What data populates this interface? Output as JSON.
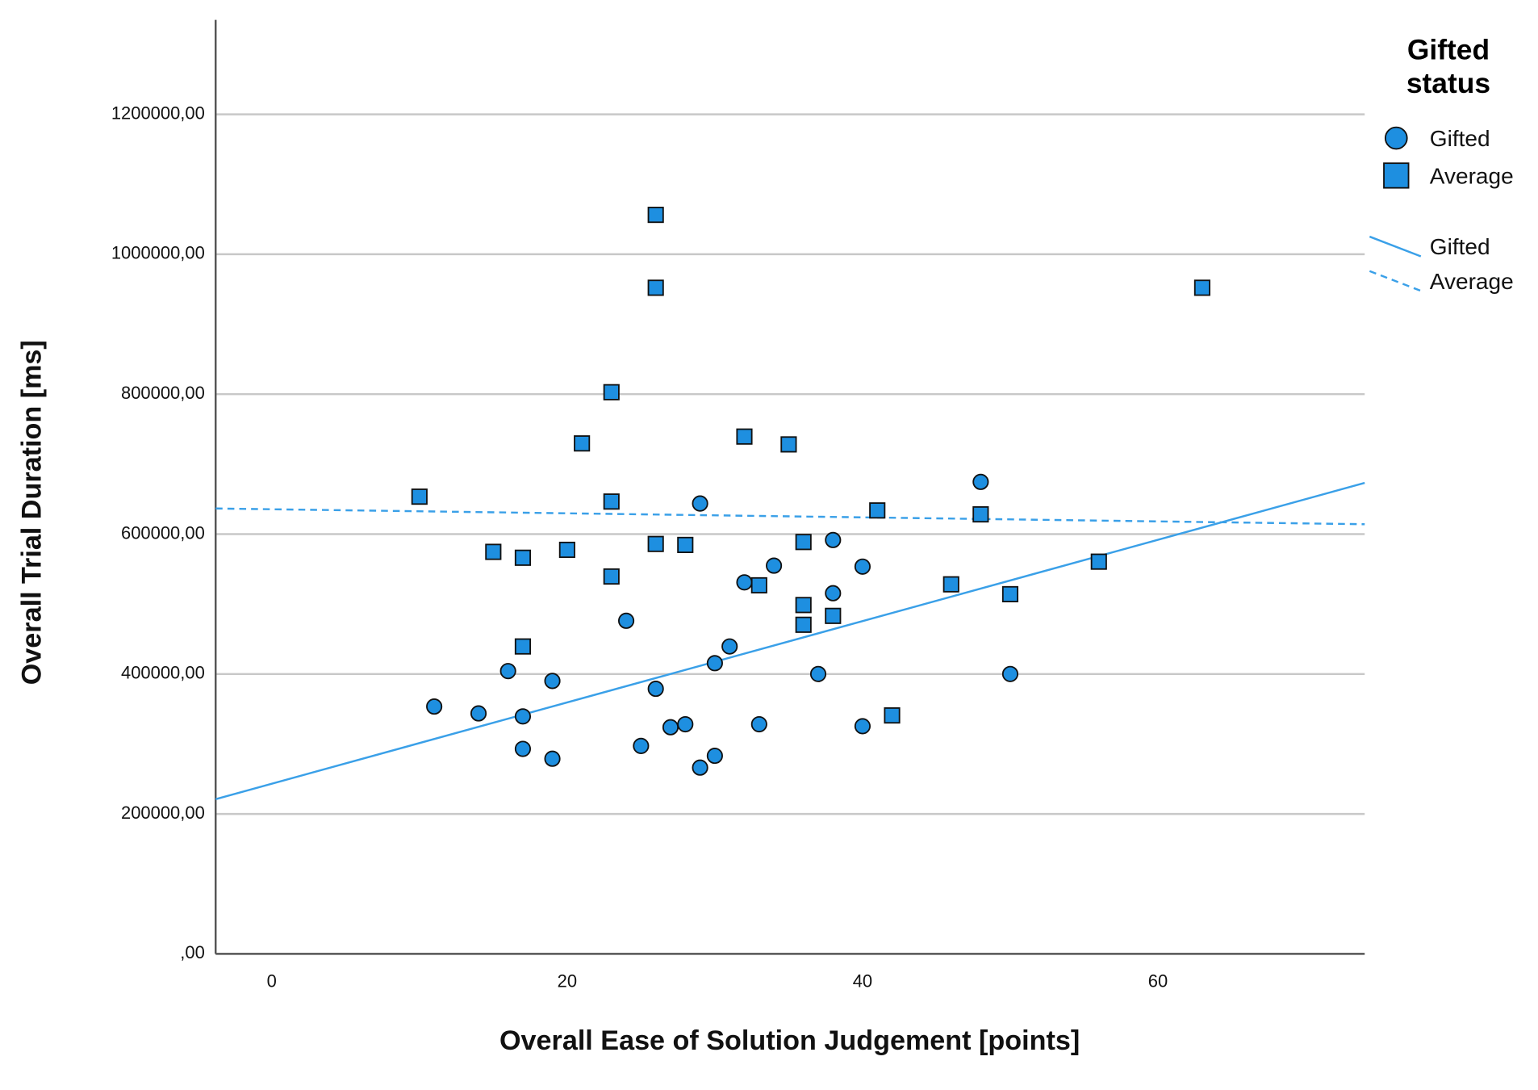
{
  "chart_data": {
    "type": "scatter",
    "x_label": "Overall Ease of Solution Judgement [points]",
    "y_label": "Overall Trial Duration [ms]",
    "xlim": [
      -3.8,
      74
    ],
    "ylim": [
      0,
      1335000
    ],
    "xticks": [
      0,
      20,
      40,
      60
    ],
    "yticks": [
      {
        "value": 0,
        "label": ",00"
      },
      {
        "value": 200000,
        "label": "200000,00"
      },
      {
        "value": 400000,
        "label": "400000,00"
      },
      {
        "value": 600000,
        "label": "600000,00"
      },
      {
        "value": 800000,
        "label": "800000,00"
      },
      {
        "value": 1000000,
        "label": "1000000,00"
      },
      {
        "value": 1200000,
        "label": "1200000,00"
      }
    ],
    "grid": true,
    "legend_title": "Gifted status",
    "series": [
      {
        "name": "Gifted",
        "marker": "circle",
        "color": "#1e8fe0",
        "x": [
          11,
          14,
          16,
          17,
          17,
          19,
          19,
          24,
          25,
          26,
          27,
          28,
          29,
          29,
          30,
          30,
          31,
          32,
          33,
          34,
          37,
          38,
          38,
          40,
          40,
          48,
          50
        ],
        "values": [
          353500,
          343700,
          404200,
          339400,
          293000,
          390100,
          278900,
          476100,
          297200,
          378900,
          323900,
          328200,
          643700,
          266200,
          415500,
          283100,
          439400,
          531000,
          328200,
          554900,
          400000,
          591500,
          515500,
          553500,
          325400,
          674600,
          400000
        ]
      },
      {
        "name": "Average",
        "marker": "square",
        "color": "#1e8fe0",
        "x": [
          10,
          15,
          17,
          17,
          20,
          21,
          23,
          23,
          23,
          26,
          26,
          26,
          28,
          32,
          33,
          35,
          36,
          36,
          36,
          38,
          41,
          42,
          46,
          48,
          50,
          56,
          63
        ],
        "values": [
          653500,
          574600,
          566200,
          439400,
          577500,
          729600,
          802800,
          646500,
          539400,
          1056300,
          952100,
          585900,
          584500,
          739400,
          526800,
          728200,
          588700,
          498600,
          470400,
          483100,
          633800,
          340800,
          528200,
          628200,
          514100,
          560600,
          952100
        ]
      }
    ],
    "fit_lines": [
      {
        "name": "Gifted",
        "color": "#3aa0e8",
        "dashed": false,
        "x": [
          -3.8,
          74
        ],
        "values": [
          221100,
          673200
        ]
      },
      {
        "name": "Average",
        "color": "#3aa0e8",
        "dashed": true,
        "x": [
          -3.8,
          74
        ],
        "values": [
          636600,
          614100
        ]
      }
    ]
  }
}
